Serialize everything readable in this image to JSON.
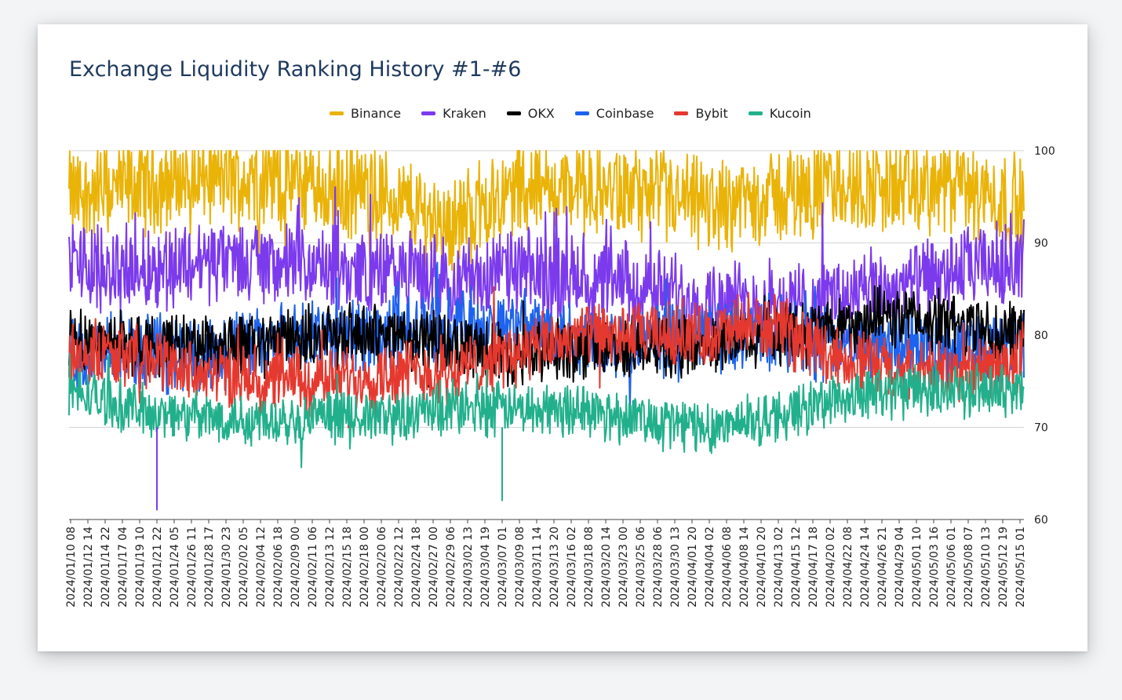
{
  "chart_data": {
    "type": "line",
    "title": "Exchange Liquidity Ranking History #1-#6",
    "xlabel": "",
    "ylabel": "",
    "ylim": [
      60,
      100
    ],
    "yticks": [
      60,
      70,
      80,
      90,
      100
    ],
    "grid": true,
    "legend_position": "top",
    "x_tick_labels": [
      "2024/01/10 08",
      "2024/01/12 14",
      "2024/01/14 22",
      "2024/01/17 04",
      "2024/01/19 10",
      "2024/01/21 22",
      "2024/01/24 05",
      "2024/01/26 11",
      "2024/01/28 17",
      "2024/01/30 23",
      "2024/02/02 05",
      "2024/02/04 12",
      "2024/02/06 18",
      "2024/02/09 00",
      "2024/02/11 06",
      "2024/02/13 12",
      "2024/02/15 18",
      "2024/02/18 00",
      "2024/02/20 06",
      "2024/02/22 12",
      "2024/02/24 18",
      "2024/02/27 00",
      "2024/02/29 06",
      "2024/03/02 13",
      "2024/03/04 19",
      "2024/03/07 01",
      "2024/03/09 08",
      "2024/03/11 14",
      "2024/03/13 20",
      "2024/03/16 02",
      "2024/03/18 08",
      "2024/03/20 14",
      "2024/03/23 00",
      "2024/03/25 06",
      "2024/03/28 06",
      "2024/03/30 13",
      "2024/04/01 20",
      "2024/04/04 02",
      "2024/04/06 08",
      "2024/04/08 14",
      "2024/04/10 20",
      "2024/04/13 02",
      "2024/04/15 12",
      "2024/04/17 18",
      "2024/04/20 02",
      "2024/04/22 08",
      "2024/04/24 14",
      "2024/04/26 21",
      "2024/04/29 04",
      "2024/05/01 10",
      "2024/05/03 16",
      "2024/05/06 01",
      "2024/05/08 07",
      "2024/05/10 13",
      "2024/05/12 19",
      "2024/05/15 01"
    ],
    "series": [
      {
        "name": "Binance",
        "color": "#eab308",
        "mean_anchors": [
          95,
          96,
          97,
          97,
          96,
          95,
          92,
          96,
          96,
          95,
          94,
          95,
          96,
          96,
          96,
          94
        ],
        "amplitude": 4.5
      },
      {
        "name": "Kraken",
        "color": "#7c3aed",
        "mean_anchors": [
          88,
          87,
          88,
          88,
          87,
          87,
          86,
          87,
          86,
          85,
          84,
          83,
          84,
          85,
          87,
          88
        ],
        "amplitude": 4.0
      },
      {
        "name": "OKX",
        "color": "#000000",
        "mean_anchors": [
          80,
          79,
          79,
          79,
          80,
          80,
          79,
          78,
          78,
          79,
          79,
          80,
          81,
          82,
          81,
          80
        ],
        "amplitude": 3.0
      },
      {
        "name": "Coinbase",
        "color": "#1d63ed",
        "mean_anchors": [
          78,
          78,
          78,
          79,
          80,
          80,
          81,
          81,
          80,
          79,
          80,
          80,
          79,
          79,
          79,
          79
        ],
        "amplitude": 3.5
      },
      {
        "name": "Bybit",
        "color": "#e5392f",
        "mean_anchors": [
          78,
          78,
          76,
          75,
          75,
          76,
          76,
          78,
          80,
          80,
          80,
          81,
          78,
          76,
          76,
          77
        ],
        "amplitude": 3.0
      },
      {
        "name": "Kucoin",
        "color": "#22b08c",
        "mean_anchors": [
          74,
          72,
          71,
          71,
          71,
          71,
          72,
          72,
          72,
          71,
          70,
          71,
          73,
          74,
          74,
          74
        ],
        "amplitude": 2.5
      }
    ],
    "annotations": [
      {
        "series": "Kraken",
        "note": "spike low",
        "y": 61,
        "x_tick_index": 5
      },
      {
        "series": "Kucoin",
        "note": "spike low",
        "y": 62,
        "x_tick_index": 25
      }
    ]
  }
}
